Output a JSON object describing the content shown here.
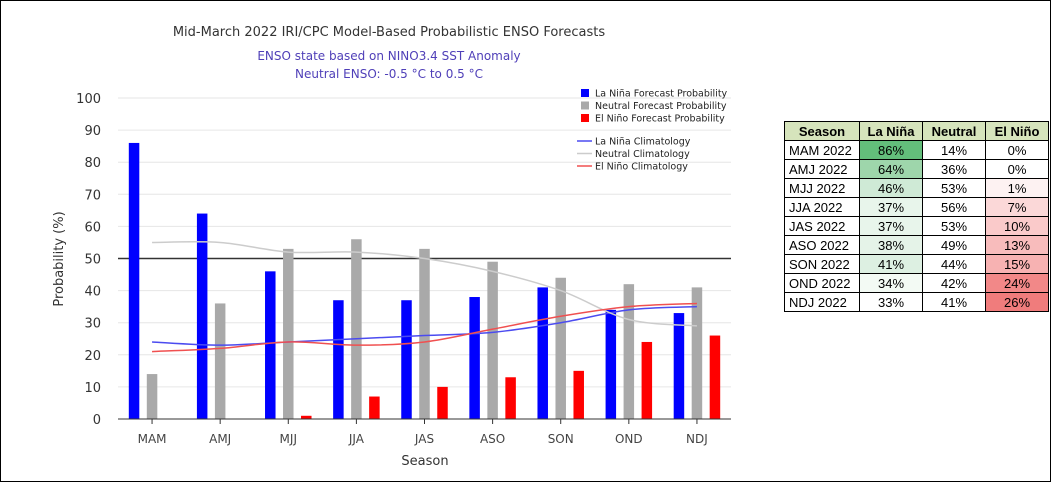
{
  "chart_data": {
    "type": "bar",
    "title": "Mid-March 2022 IRI/CPC Model-Based Probabilistic ENSO Forecasts",
    "subtitle_lines": [
      "ENSO state based on NINO3.4 SST Anomaly",
      "Neutral ENSO: -0.5 °C to 0.5 °C"
    ],
    "xlabel": "Season",
    "ylabel": "Probability (%)",
    "ylim": [
      0,
      100
    ],
    "yticks": [
      0,
      10,
      20,
      30,
      40,
      50,
      60,
      70,
      80,
      90,
      100
    ],
    "reference_line": 50,
    "legend_position": "top-right",
    "categories": [
      "MAM",
      "AMJ",
      "MJJ",
      "JJA",
      "JAS",
      "ASO",
      "SON",
      "OND",
      "NDJ"
    ],
    "series": [
      {
        "name": "La Niña Forecast Probability",
        "kind": "bar",
        "color": "#0000ff",
        "values": [
          86,
          64,
          46,
          37,
          37,
          38,
          41,
          34,
          33
        ]
      },
      {
        "name": "Neutral Forecast Probability",
        "kind": "bar",
        "color": "#a9a9a9",
        "values": [
          14,
          36,
          53,
          56,
          53,
          49,
          44,
          42,
          41
        ]
      },
      {
        "name": "El Niño Forecast Probability",
        "kind": "bar",
        "color": "#ff0000",
        "values": [
          0,
          0,
          1,
          7,
          10,
          13,
          15,
          24,
          26
        ]
      },
      {
        "name": "La Niña Climatology",
        "kind": "line",
        "color": "#4b4bf0",
        "values": [
          24,
          23,
          24,
          25,
          26,
          27,
          30,
          34,
          35
        ]
      },
      {
        "name": "Neutral Climatology",
        "kind": "line",
        "color": "#cccccc",
        "values": [
          55,
          55,
          52,
          52,
          50,
          46,
          40,
          31,
          29
        ]
      },
      {
        "name": "El Niño Climatology",
        "kind": "line",
        "color": "#f05050",
        "values": [
          21,
          22,
          24,
          23,
          24,
          28,
          32,
          35,
          36
        ]
      }
    ]
  },
  "table": {
    "headers": [
      "Season",
      "La Niña",
      "Neutral",
      "El Niño"
    ],
    "header_color": "#d6e4bc",
    "rows": [
      {
        "season": "MAM 2022",
        "la_nina": "86%",
        "neutral": "14%",
        "el_nino": "0%",
        "la_nina_color": "#63be7b",
        "el_nino_color": "#ffffff"
      },
      {
        "season": "AMJ 2022",
        "la_nina": "64%",
        "neutral": "36%",
        "el_nino": "0%",
        "la_nina_color": "#9ed6ab",
        "el_nino_color": "#ffffff"
      },
      {
        "season": "MJJ 2022",
        "la_nina": "46%",
        "neutral": "53%",
        "el_nino": "1%",
        "la_nina_color": "#cfead6",
        "el_nino_color": "#fdf2f2"
      },
      {
        "season": "JJA 2022",
        "la_nina": "37%",
        "neutral": "56%",
        "el_nino": "7%",
        "la_nina_color": "#e8f5eb",
        "el_nino_color": "#fbd8d8"
      },
      {
        "season": "JAS 2022",
        "la_nina": "37%",
        "neutral": "53%",
        "el_nino": "10%",
        "la_nina_color": "#e8f5eb",
        "el_nino_color": "#facaca"
      },
      {
        "season": "ASO 2022",
        "la_nina": "38%",
        "neutral": "49%",
        "el_nino": "13%",
        "la_nina_color": "#e5f3e8",
        "el_nino_color": "#f8bcbc"
      },
      {
        "season": "SON 2022",
        "la_nina": "41%",
        "neutral": "44%",
        "el_nino": "15%",
        "la_nina_color": "#ddf0e2",
        "el_nino_color": "#f7b2b2"
      },
      {
        "season": "OND 2022",
        "la_nina": "34%",
        "neutral": "42%",
        "el_nino": "24%",
        "la_nina_color": "#f3faf4",
        "el_nino_color": "#f28888"
      },
      {
        "season": "NDJ 2022",
        "la_nina": "33%",
        "neutral": "41%",
        "el_nino": "26%",
        "la_nina_color": "#ffffff",
        "el_nino_color": "#f07c7c"
      }
    ]
  }
}
